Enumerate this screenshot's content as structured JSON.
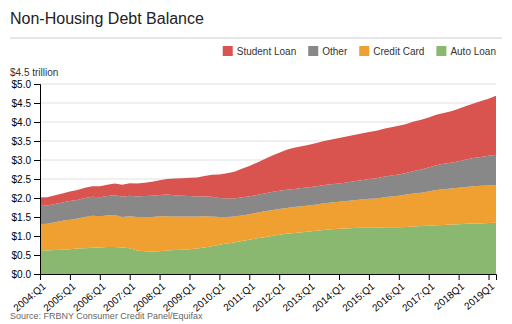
{
  "chart_data": {
    "type": "area",
    "stacked": true,
    "title": "Non-Housing Debt Balance",
    "ylabel": "$4.5  trillion",
    "source": "Source: FRBNY Consumer Credit Panel/Equifax",
    "grid": true,
    "categories": [
      "2004:Q1",
      null,
      null,
      null,
      "2005:Q1",
      null,
      null,
      null,
      "2006:Q1",
      null,
      null,
      null,
      "2007:Q1",
      null,
      null,
      null,
      "2008:Q1",
      null,
      null,
      null,
      "2009:Q1",
      null,
      null,
      null,
      "2010:Q1",
      null,
      null,
      null,
      "2011:Q1",
      null,
      null,
      null,
      "2012:Q1",
      null,
      null,
      null,
      "2013:Q1",
      null,
      null,
      null,
      "2014:Q1",
      null,
      null,
      null,
      "2015:Q1",
      null,
      null,
      null,
      "2016:Q1",
      null,
      null,
      null,
      "2017:Q1",
      null,
      null,
      null,
      "2018Q1",
      null,
      null,
      null,
      "2019Q1",
      null
    ],
    "ylim": [
      0,
      5.0
    ],
    "yticks": [
      {
        "value": 0.0,
        "label": "$0.0"
      },
      {
        "value": 0.5,
        "label": "$0.5"
      },
      {
        "value": 1.0,
        "label": "$1.0"
      },
      {
        "value": 1.5,
        "label": "$1.5"
      },
      {
        "value": 2.0,
        "label": "$2.0"
      },
      {
        "value": 2.5,
        "label": "$2.5"
      },
      {
        "value": 3.0,
        "label": "$3.0"
      },
      {
        "value": 3.5,
        "label": "$3.5"
      },
      {
        "value": 4.0,
        "label": "$4.0"
      },
      {
        "value": 4.5,
        "label": "$4.5"
      },
      {
        "value": 5.0,
        "label": "$5.0"
      }
    ],
    "series": [
      {
        "name": "Auto Loan",
        "color": "#8ab870",
        "values": [
          0.63,
          0.62,
          0.63,
          0.64,
          0.65,
          0.67,
          0.68,
          0.69,
          0.7,
          0.71,
          0.71,
          0.7,
          0.68,
          0.62,
          0.6,
          0.59,
          0.6,
          0.62,
          0.63,
          0.64,
          0.65,
          0.67,
          0.7,
          0.73,
          0.77,
          0.8,
          0.83,
          0.87,
          0.9,
          0.94,
          0.97,
          1.0,
          1.03,
          1.06,
          1.08,
          1.1,
          1.12,
          1.14,
          1.16,
          1.18,
          1.19,
          1.2,
          1.21,
          1.22,
          1.22,
          1.22,
          1.23,
          1.23,
          1.23,
          1.24,
          1.25,
          1.26,
          1.27,
          1.28,
          1.29,
          1.3,
          1.31,
          1.32,
          1.33,
          1.33,
          1.34,
          1.35
        ]
      },
      {
        "name": "Credit Card",
        "color": "#f0a030",
        "values": [
          0.68,
          0.7,
          0.73,
          0.76,
          0.78,
          0.79,
          0.82,
          0.84,
          0.82,
          0.83,
          0.84,
          0.8,
          0.84,
          0.88,
          0.9,
          0.91,
          0.92,
          0.9,
          0.88,
          0.87,
          0.86,
          0.84,
          0.82,
          0.78,
          0.73,
          0.7,
          0.68,
          0.67,
          0.67,
          0.67,
          0.68,
          0.68,
          0.68,
          0.68,
          0.68,
          0.68,
          0.68,
          0.69,
          0.7,
          0.7,
          0.71,
          0.72,
          0.73,
          0.74,
          0.76,
          0.77,
          0.79,
          0.81,
          0.83,
          0.85,
          0.87,
          0.88,
          0.9,
          0.93,
          0.94,
          0.95,
          0.96,
          0.97,
          0.98,
          0.99,
          0.99,
          0.99
        ]
      },
      {
        "name": "Other",
        "color": "#888888",
        "values": [
          0.48,
          0.48,
          0.48,
          0.48,
          0.49,
          0.49,
          0.5,
          0.5,
          0.5,
          0.51,
          0.52,
          0.53,
          0.54,
          0.54,
          0.55,
          0.56,
          0.56,
          0.57,
          0.56,
          0.55,
          0.54,
          0.53,
          0.52,
          0.52,
          0.5,
          0.49,
          0.48,
          0.48,
          0.47,
          0.47,
          0.47,
          0.48,
          0.48,
          0.48,
          0.48,
          0.48,
          0.48,
          0.48,
          0.48,
          0.48,
          0.48,
          0.49,
          0.5,
          0.51,
          0.52,
          0.53,
          0.54,
          0.55,
          0.56,
          0.57,
          0.59,
          0.61,
          0.63,
          0.65,
          0.67,
          0.68,
          0.7,
          0.72,
          0.74,
          0.76,
          0.78,
          0.8
        ]
      },
      {
        "name": "Student Loan",
        "color": "#d9534f",
        "values": [
          0.22,
          0.22,
          0.23,
          0.24,
          0.25,
          0.26,
          0.27,
          0.28,
          0.29,
          0.3,
          0.31,
          0.32,
          0.33,
          0.34,
          0.35,
          0.37,
          0.39,
          0.41,
          0.44,
          0.46,
          0.48,
          0.5,
          0.54,
          0.58,
          0.62,
          0.66,
          0.7,
          0.75,
          0.8,
          0.85,
          0.9,
          0.95,
          1.0,
          1.05,
          1.08,
          1.1,
          1.12,
          1.14,
          1.16,
          1.18,
          1.2,
          1.21,
          1.22,
          1.23,
          1.24,
          1.25,
          1.26,
          1.27,
          1.28,
          1.29,
          1.3,
          1.31,
          1.32,
          1.33,
          1.34,
          1.35,
          1.38,
          1.41,
          1.44,
          1.47,
          1.5,
          1.55
        ]
      }
    ]
  }
}
